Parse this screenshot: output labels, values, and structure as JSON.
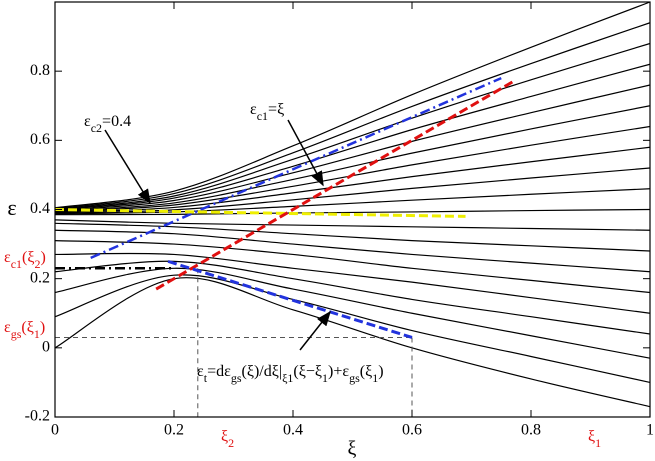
{
  "chart_data": {
    "type": "line",
    "x_label": "ξ",
    "y_label": "ε",
    "xlim": [
      0,
      1
    ],
    "ylim": [
      -0.2,
      1.0
    ],
    "xticks": [
      0,
      0.2,
      0.4,
      0.6,
      0.8,
      1
    ],
    "yticks": [
      -0.2,
      0,
      0.2,
      0.4,
      0.6,
      0.8
    ],
    "x": [
      0,
      0.2,
      0.4,
      0.6,
      0.8,
      1
    ],
    "color": "#000000",
    "series": [
      {
        "values": [
          0.405,
          0.453,
          0.584,
          0.732,
          0.869,
          1.0
        ]
      },
      {
        "values": [
          0.403,
          0.446,
          0.564,
          0.698,
          0.822,
          0.94
        ]
      },
      {
        "values": [
          0.401,
          0.439,
          0.545,
          0.664,
          0.775,
          0.88
        ]
      },
      {
        "values": [
          0.399,
          0.433,
          0.525,
          0.631,
          0.727,
          0.82
        ]
      },
      {
        "values": [
          0.397,
          0.426,
          0.506,
          0.597,
          0.68,
          0.76
        ]
      },
      {
        "values": [
          0.395,
          0.419,
          0.487,
          0.563,
          0.633,
          0.7
        ]
      },
      {
        "values": [
          0.393,
          0.413,
          0.467,
          0.529,
          0.586,
          0.64
        ]
      },
      {
        "values": [
          0.391,
          0.406,
          0.448,
          0.495,
          0.538,
          0.58
        ]
      },
      {
        "values": [
          0.389,
          0.399,
          0.428,
          0.461,
          0.491,
          0.52
        ]
      },
      {
        "values": [
          0.387,
          0.393,
          0.409,
          0.427,
          0.444,
          0.46
        ]
      },
      {
        "values": [
          0.385,
          0.386,
          0.39,
          0.393,
          0.397,
          0.4
        ]
      },
      {
        "values": [
          0.37,
          0.36,
          0.355,
          0.35,
          0.345,
          0.34
        ]
      },
      {
        "values": [
          0.36,
          0.35,
          0.33,
          0.31,
          0.295,
          0.28
        ]
      },
      {
        "values": [
          0.34,
          0.33,
          0.3,
          0.27,
          0.245,
          0.22
        ]
      },
      {
        "values": [
          0.31,
          0.3,
          0.27,
          0.23,
          0.195,
          0.16
        ]
      },
      {
        "values": [
          0.27,
          0.27,
          0.23,
          0.19,
          0.145,
          0.1
        ]
      },
      {
        "values": [
          0.22,
          0.25,
          0.2,
          0.14,
          0.09,
          0.04
        ]
      },
      {
        "values": [
          0.16,
          0.23,
          0.17,
          0.1,
          0.035,
          -0.03
        ]
      },
      {
        "values": [
          0.09,
          0.21,
          0.14,
          0.05,
          -0.025,
          -0.1
        ]
      },
      {
        "values": [
          0.0,
          0.2,
          0.11,
          0.0,
          -0.09,
          -0.17
        ]
      }
    ],
    "reference_lines": [
      {
        "x": [
          0,
          0.6
        ],
        "y": [
          0.03,
          0.03
        ],
        "color": "#555555",
        "style": "thin-dashed"
      },
      {
        "x": [
          0.24,
          0.24
        ],
        "y": [
          0.23,
          -0.2
        ],
        "color": "#555555",
        "style": "thin-dashed"
      },
      {
        "x": [
          0.6,
          0.6
        ],
        "y": [
          0.03,
          -0.2
        ],
        "color": "#555555",
        "style": "thin-dashed"
      },
      {
        "x": [
          0,
          0.2
        ],
        "y": [
          0.23,
          0.23
        ],
        "color": "#000000",
        "style": "dash-dot"
      },
      {
        "x": [
          0.06,
          0.75
        ],
        "y": [
          0.26,
          0.78
        ],
        "color": "#2233dd",
        "style": "dash-dot"
      },
      {
        "x": [
          0,
          0.69
        ],
        "y": [
          0.4,
          0.38
        ],
        "color": "#eeee00",
        "style": "dashed"
      },
      {
        "x": [
          0.17,
          0.77
        ],
        "y": [
          0.17,
          0.77
        ],
        "color": "#e01010",
        "style": "dashed"
      },
      {
        "x": [
          0.19,
          0.6
        ],
        "y": [
          0.25,
          0.03
        ],
        "color": "#2233dd",
        "style": "dashed"
      }
    ],
    "annotations": [
      {
        "parts": [
          {
            "t": "ε"
          },
          {
            "sub": "c2"
          },
          {
            "t": "=0.4"
          }
        ],
        "color": "#000000"
      },
      {
        "parts": [
          {
            "t": "ε"
          },
          {
            "sub": "c1"
          },
          {
            "t": "=ξ"
          }
        ],
        "color": "#000000"
      },
      {
        "parts": [
          {
            "t": "ε"
          },
          {
            "sub": "t"
          },
          {
            "t": "=dε"
          },
          {
            "sub": "gs"
          },
          {
            "t": "(ξ)/dξ|"
          },
          {
            "sub": "ξ1"
          },
          {
            "t": "(ξ−ξ"
          },
          {
            "sub": "1"
          },
          {
            "t": ")+ε"
          },
          {
            "sub": "gs"
          },
          {
            "t": "(ξ"
          },
          {
            "sub": "1"
          },
          {
            "t": ")"
          }
        ],
        "color": "#000000"
      },
      {
        "parts": [
          {
            "t": "ε"
          },
          {
            "sub": "c1"
          },
          {
            "t": "(ξ"
          },
          {
            "sub": "2"
          },
          {
            "t": ")"
          }
        ],
        "color": "#e01010"
      },
      {
        "parts": [
          {
            "t": "ε"
          },
          {
            "sub": "gs"
          },
          {
            "t": "(ξ"
          },
          {
            "sub": "1"
          },
          {
            "t": ")"
          }
        ],
        "color": "#e01010"
      },
      {
        "parts": [
          {
            "t": "ξ"
          },
          {
            "sub": "2"
          }
        ],
        "color": "#e01010"
      },
      {
        "parts": [
          {
            "t": "ξ"
          },
          {
            "sub": "1"
          }
        ],
        "color": "#e01010"
      }
    ]
  }
}
